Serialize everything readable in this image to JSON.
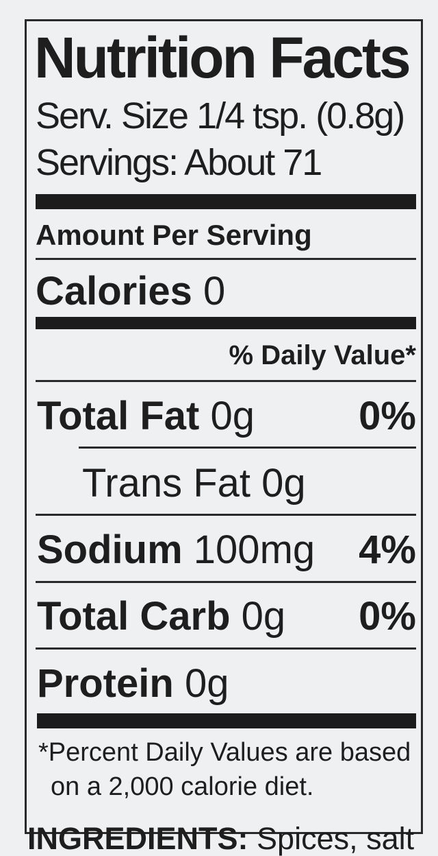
{
  "label": {
    "title": "Nutrition Facts",
    "serving_size": "Serv. Size 1/4 tsp. (0.8g)",
    "servings": "Servings: About 71",
    "amount_per_serving": "Amount Per Serving",
    "calories": {
      "label": "Calories",
      "value": "0"
    },
    "daily_value_header": "% Daily Value*",
    "nutrients": [
      {
        "label": "Total Fat",
        "amount": "0g",
        "dv": "0%"
      },
      {
        "label": "Trans Fat",
        "amount": "0g",
        "dv": ""
      },
      {
        "label": "Sodium",
        "amount": "100mg",
        "dv": "4%"
      },
      {
        "label": "Total Carb",
        "amount": "0g",
        "dv": "0%"
      },
      {
        "label": "Protein",
        "amount": "0g",
        "dv": ""
      }
    ],
    "footnote_line1": "*Percent Daily Values are based",
    "footnote_line2": "on a 2,000 calorie diet."
  },
  "ingredients": {
    "label": "INGREDIENTS:",
    "text": "Spices, salt"
  }
}
